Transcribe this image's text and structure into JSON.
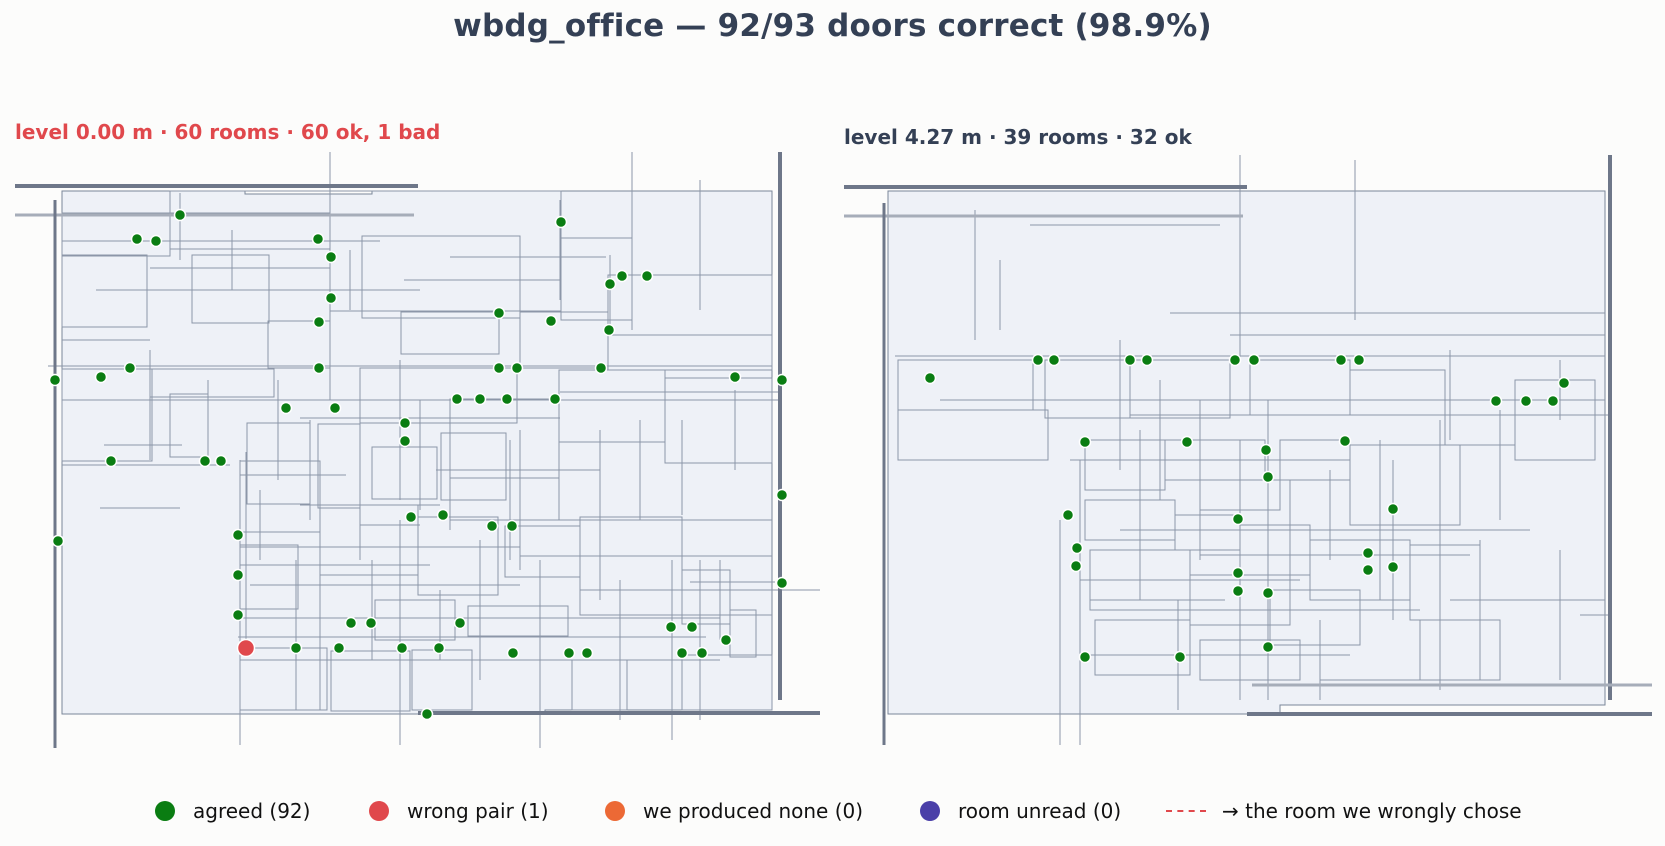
{
  "title": "wbdg_office — 92/93 doors correct (98.9%)",
  "panels": [
    {
      "title": "level 0.00 m · 60 rooms · 60 ok, 1 bad",
      "title_color": "#e0484c",
      "doors_agreed": [
        [
          180,
          215
        ],
        [
          137,
          239
        ],
        [
          156,
          241
        ],
        [
          318,
          239
        ],
        [
          331,
          257
        ],
        [
          331,
          298
        ],
        [
          319,
          322
        ],
        [
          319,
          368
        ],
        [
          101,
          377
        ],
        [
          130,
          368
        ],
        [
          55,
          380
        ],
        [
          286,
          408
        ],
        [
          335,
          408
        ],
        [
          111,
          461
        ],
        [
          205,
          461
        ],
        [
          221,
          461
        ],
        [
          405,
          423
        ],
        [
          405,
          441
        ],
        [
          411,
          517
        ],
        [
          443,
          515
        ],
        [
          492,
          526
        ],
        [
          512,
          526
        ],
        [
          561,
          222
        ],
        [
          499,
          313
        ],
        [
          551,
          321
        ],
        [
          610,
          284
        ],
        [
          622,
          276
        ],
        [
          647,
          276
        ],
        [
          609,
          330
        ],
        [
          601,
          368
        ],
        [
          499,
          368
        ],
        [
          517,
          368
        ],
        [
          457,
          399
        ],
        [
          480,
          399
        ],
        [
          507,
          399
        ],
        [
          555,
          399
        ],
        [
          735,
          377
        ],
        [
          782,
          380
        ],
        [
          58,
          541
        ],
        [
          782,
          495
        ],
        [
          782,
          583
        ],
        [
          238,
          535
        ],
        [
          238,
          575
        ],
        [
          238,
          615
        ],
        [
          351,
          623
        ],
        [
          371,
          623
        ],
        [
          460,
          623
        ],
        [
          296,
          648
        ],
        [
          339,
          648
        ],
        [
          402,
          648
        ],
        [
          439,
          648
        ],
        [
          513,
          653
        ],
        [
          569,
          653
        ],
        [
          587,
          653
        ],
        [
          671,
          627
        ],
        [
          692,
          627
        ],
        [
          726,
          640
        ],
        [
          682,
          653
        ],
        [
          702,
          653
        ],
        [
          427,
          714
        ]
      ],
      "doors_wrong": [
        [
          246,
          648
        ]
      ]
    },
    {
      "title": "level 4.27 m · 39 rooms · 32 ok",
      "title_color": "#344055",
      "doors_agreed": [
        [
          930,
          378
        ],
        [
          1038,
          360
        ],
        [
          1054,
          360
        ],
        [
          1130,
          360
        ],
        [
          1147,
          360
        ],
        [
          1235,
          360
        ],
        [
          1254,
          360
        ],
        [
          1341,
          360
        ],
        [
          1359,
          360
        ],
        [
          1085,
          442
        ],
        [
          1187,
          442
        ],
        [
          1266,
          450
        ],
        [
          1268,
          477
        ],
        [
          1345,
          441
        ],
        [
          1496,
          401
        ],
        [
          1526,
          401
        ],
        [
          1553,
          401
        ],
        [
          1564,
          383
        ],
        [
          1068,
          515
        ],
        [
          1238,
          519
        ],
        [
          1393,
          509
        ],
        [
          1077,
          548
        ],
        [
          1076,
          566
        ],
        [
          1368,
          553
        ],
        [
          1368,
          570
        ],
        [
          1393,
          567
        ],
        [
          1238,
          573
        ],
        [
          1268,
          593
        ],
        [
          1238,
          591
        ],
        [
          1085,
          657
        ],
        [
          1180,
          657
        ],
        [
          1268,
          647
        ]
      ],
      "doors_wrong": []
    }
  ],
  "legend": [
    {
      "label": "agreed (92)",
      "color": "#0a7d12",
      "kind": "dot"
    },
    {
      "label": "wrong pair (1)",
      "color": "#e0484c",
      "kind": "dot"
    },
    {
      "label": "we produced none (0)",
      "color": "#ec6935",
      "kind": "dot"
    },
    {
      "label": "room unread (0)",
      "color": "#4a3fa8",
      "kind": "dot"
    },
    {
      "label": "→ the room we wrongly chose",
      "color": "#e0484c",
      "kind": "dash"
    }
  ]
}
